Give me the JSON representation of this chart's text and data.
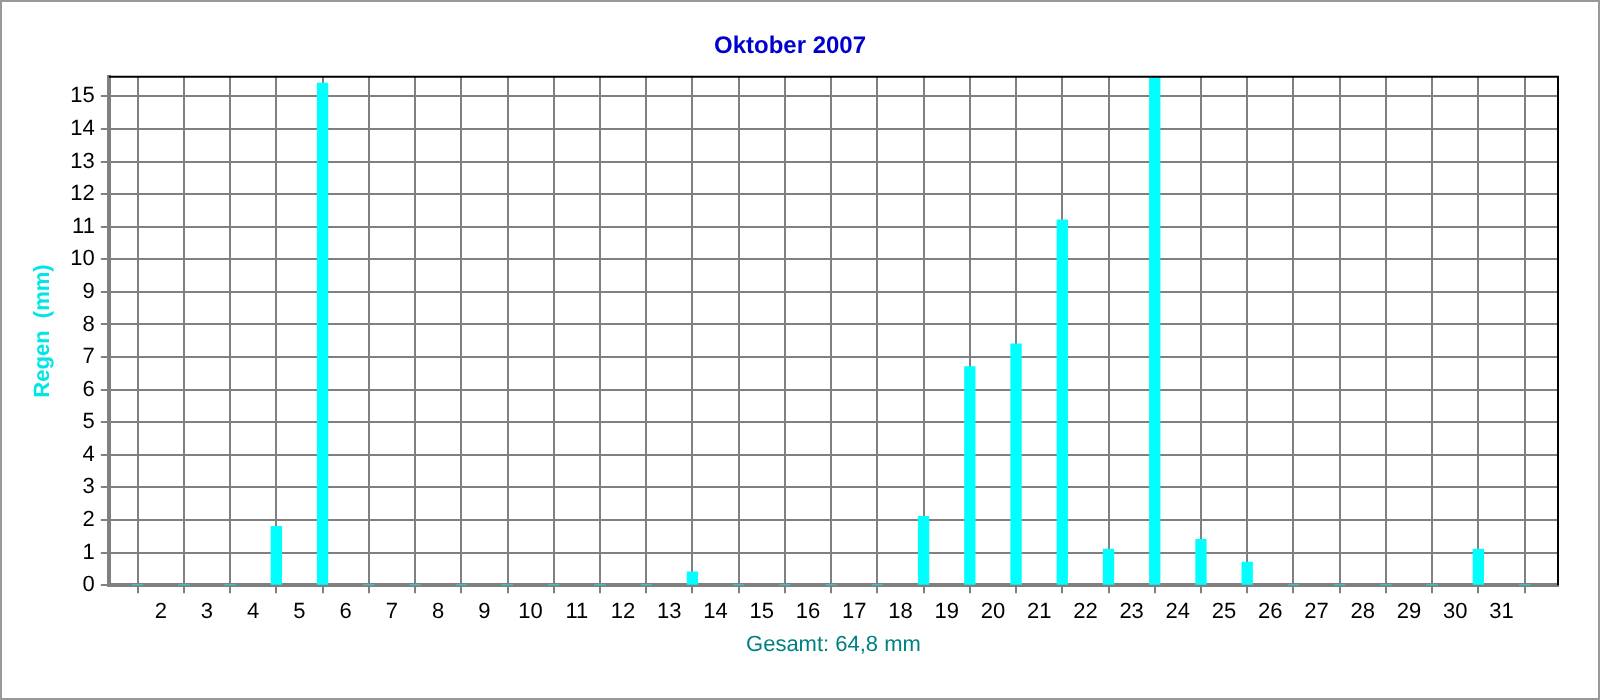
{
  "chart_data": {
    "type": "bar",
    "title": "Oktober 2007",
    "ylabel": "Regen  (mm)",
    "xlabel": "Gesamt: 64,8 mm",
    "x": [
      1.5,
      2.5,
      3.5,
      4.5,
      5.5,
      6.5,
      7.5,
      8.5,
      9.5,
      10.5,
      11.5,
      12.5,
      13.5,
      14.5,
      15.5,
      16.5,
      17.5,
      18.5,
      19.5,
      20.5,
      21.5,
      22.5,
      23.5,
      24.5,
      25.5,
      26.5,
      27.5,
      28.5,
      29.5,
      30.5,
      31.5
    ],
    "values": [
      0,
      0,
      0,
      1.8,
      15.4,
      0,
      0,
      0,
      0,
      0,
      0,
      0,
      0.4,
      0,
      0,
      0,
      0,
      2.1,
      6.7,
      7.4,
      11.2,
      1.1,
      15.6,
      1.4,
      0.7,
      0,
      0,
      0,
      0,
      1.1,
      0
    ],
    "color": "#00ffff",
    "xlim": [
      1.4,
      31.7
    ],
    "xticks": [
      2,
      3,
      4,
      5,
      6,
      7,
      8,
      9,
      10,
      11,
      12,
      13,
      14,
      15,
      16,
      17,
      18,
      19,
      20,
      21,
      22,
      23,
      24,
      25,
      26,
      27,
      28,
      29,
      30,
      31
    ],
    "ylim": [
      0,
      15.6
    ],
    "yticks": [
      0,
      1,
      2,
      3,
      4,
      5,
      6,
      7,
      8,
      9,
      10,
      11,
      12,
      13,
      14,
      15
    ],
    "grid": true,
    "legend": false
  }
}
